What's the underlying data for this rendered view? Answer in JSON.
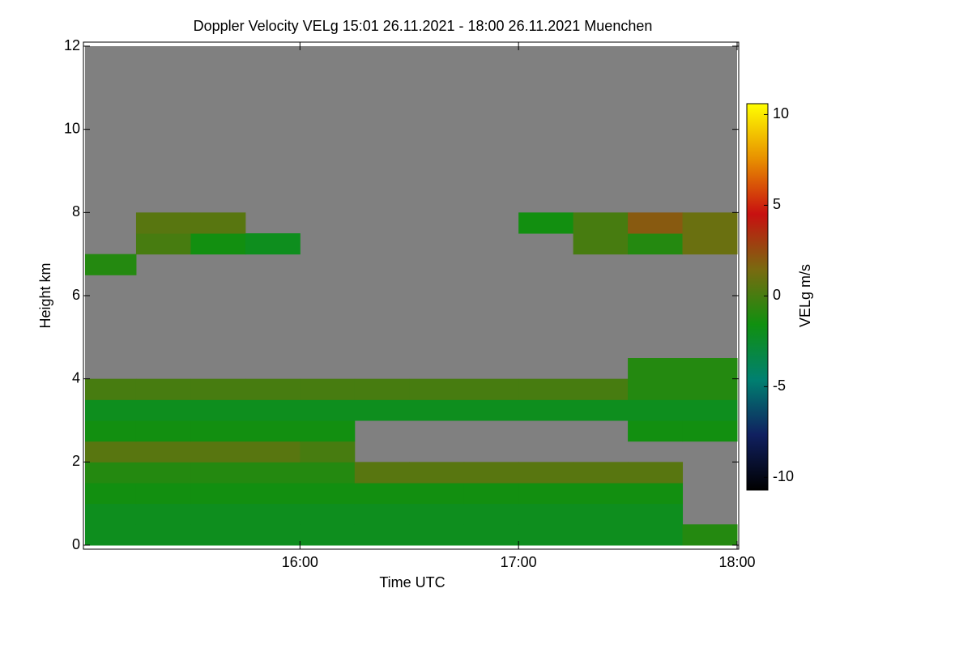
{
  "chart_data": {
    "type": "heatmap",
    "title": "Doppler Velocity VELg   15:01 26.11.2021 - 18:00 26.11.2021 Muenchen",
    "x_label": "Time UTC",
    "y_label": "Height km",
    "colorbar_label": "VELg m/s",
    "xlim": [
      15.0167,
      18.0
    ],
    "xticks": [
      {
        "value": 16,
        "label": "16:00"
      },
      {
        "value": 17,
        "label": "17:00"
      },
      {
        "value": 18,
        "label": "18:00"
      }
    ],
    "ylim": [
      0,
      12
    ],
    "yticks": [
      0,
      2,
      4,
      6,
      8,
      10,
      12
    ],
    "clim": [
      -10.7,
      10.6
    ],
    "cticks": [
      -10,
      -5,
      0,
      5,
      10
    ],
    "colormap": [
      "#000000",
      "#102060",
      "#008070",
      "#109010",
      "#7a6a10",
      "#c81010",
      "#e89000",
      "#ffff00"
    ],
    "background": "#808080",
    "x_edges": [
      15.0167,
      15.25,
      15.5,
      15.75,
      16.0,
      16.25,
      16.5,
      16.75,
      17.0,
      17.25,
      17.5,
      17.75,
      18.0
    ],
    "y_edges": [
      0,
      0.5,
      1,
      1.5,
      2,
      2.5,
      3,
      3.5,
      4,
      4.5,
      5,
      5.5,
      6,
      6.5,
      7,
      7.5,
      8,
      8.5,
      9,
      9.5,
      10,
      10.5,
      11,
      11.5,
      12
    ],
    "z": [
      [
        -2,
        -2,
        -2,
        -2,
        -2,
        -2,
        -2,
        -2,
        -2,
        -2,
        -2,
        -1
      ],
      [
        -2,
        -2,
        -2,
        -2,
        -2,
        -2,
        -2,
        -2,
        -2,
        -2,
        -2,
        null
      ],
      [
        -1.5,
        -1.5,
        -1.5,
        -1.5,
        -1.5,
        -1.5,
        -1.5,
        -1.5,
        -1.5,
        -1.5,
        -1.5,
        null
      ],
      [
        -1,
        -1,
        -1,
        -1,
        -1,
        0.5,
        0.5,
        0.5,
        0.5,
        0.5,
        0.5,
        null
      ],
      [
        0.5,
        0.5,
        0.5,
        0.5,
        0,
        null,
        null,
        null,
        null,
        null,
        null,
        null
      ],
      [
        -1.5,
        -1.5,
        -1.5,
        -1.5,
        -1.5,
        null,
        null,
        null,
        null,
        null,
        -1.5,
        -1.5
      ],
      [
        -2,
        -2,
        -2,
        -2,
        -2,
        -2,
        -2,
        -2,
        -2,
        -2,
        -2,
        -2
      ],
      [
        0,
        0,
        0,
        0,
        0,
        0,
        0,
        0,
        0,
        0,
        -1,
        -1
      ],
      [
        null,
        null,
        null,
        null,
        null,
        null,
        null,
        null,
        null,
        null,
        -1,
        -1
      ],
      [
        null,
        null,
        null,
        null,
        null,
        null,
        null,
        null,
        null,
        null,
        null,
        null
      ],
      [
        null,
        null,
        null,
        null,
        null,
        null,
        null,
        null,
        null,
        null,
        null,
        null
      ],
      [
        null,
        null,
        null,
        null,
        null,
        null,
        null,
        null,
        null,
        null,
        null,
        null
      ],
      [
        null,
        null,
        null,
        null,
        null,
        null,
        null,
        null,
        null,
        null,
        null,
        null
      ],
      [
        -1,
        null,
        null,
        null,
        null,
        null,
        null,
        null,
        null,
        null,
        null,
        null
      ],
      [
        null,
        0,
        -1.5,
        -2,
        null,
        null,
        null,
        null,
        null,
        0,
        -1,
        1
      ],
      [
        null,
        0.5,
        0.5,
        null,
        null,
        null,
        null,
        null,
        -1.5,
        0,
        2,
        1
      ],
      [
        null,
        null,
        null,
        null,
        null,
        null,
        null,
        null,
        null,
        null,
        null,
        null
      ],
      [
        null,
        null,
        null,
        null,
        null,
        null,
        null,
        null,
        null,
        null,
        null,
        null
      ],
      [
        null,
        null,
        null,
        null,
        null,
        null,
        null,
        null,
        null,
        null,
        null,
        null
      ],
      [
        null,
        null,
        null,
        null,
        null,
        null,
        null,
        null,
        null,
        null,
        null,
        null
      ],
      [
        null,
        null,
        null,
        null,
        null,
        null,
        null,
        null,
        null,
        null,
        null,
        null
      ],
      [
        null,
        null,
        null,
        null,
        null,
        null,
        null,
        null,
        null,
        null,
        null,
        null
      ],
      [
        null,
        null,
        null,
        null,
        null,
        null,
        null,
        null,
        null,
        null,
        null,
        null
      ],
      [
        null,
        null,
        null,
        null,
        null,
        null,
        null,
        null,
        null,
        null,
        null,
        null
      ]
    ]
  }
}
